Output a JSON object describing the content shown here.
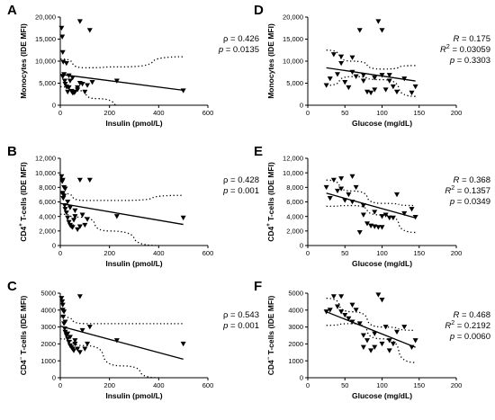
{
  "chart_data": [
    {
      "panel": "A",
      "type": "scatter",
      "xlabel": "Insulin (pmol/L)",
      "ylabel": "Monocytes (IDE MFI)",
      "xlim": [
        0,
        600
      ],
      "ylim": [
        0,
        20000
      ],
      "xticks": [
        0,
        200,
        400,
        600
      ],
      "yticks": [
        0,
        5000,
        10000,
        15000,
        20000
      ],
      "ytick_labels": [
        "0",
        "5,000",
        "10,000",
        "15,000",
        "20,000"
      ],
      "stats": [
        "ρ = 0.426",
        "p = 0.0135"
      ],
      "fit": {
        "x0": 0,
        "x1": 500,
        "y0": 7000,
        "y1": 3400
      },
      "ci_upper": [
        [
          0,
          10500
        ],
        [
          100,
          8500
        ],
        [
          250,
          8700
        ],
        [
          500,
          11000
        ]
      ],
      "ci_lower": [
        [
          0,
          4200
        ],
        [
          60,
          3400
        ],
        [
          150,
          1500
        ],
        [
          300,
          -2000
        ]
      ],
      "x": [
        5,
        8,
        10,
        12,
        15,
        18,
        20,
        25,
        30,
        35,
        40,
        45,
        50,
        55,
        60,
        70,
        80,
        90,
        100,
        110,
        120,
        230,
        500,
        80,
        130,
        35,
        10,
        25,
        50,
        70
      ],
      "y": [
        17500,
        15500,
        6500,
        9800,
        7000,
        5500,
        4800,
        4200,
        3000,
        4000,
        5500,
        3200,
        6200,
        2800,
        3000,
        3500,
        19000,
        4800,
        3000,
        4500,
        17000,
        5500,
        3300,
        5000,
        5200,
        6700,
        12000,
        9500,
        2800,
        4000
      ]
    },
    {
      "panel": "B",
      "type": "scatter",
      "xlabel": "Insulin (pmol/L)",
      "ylabel": "CD4+ T-cells (IDE MFI)",
      "xlim": [
        0,
        600
      ],
      "ylim": [
        0,
        12000
      ],
      "xticks": [
        0,
        200,
        400,
        600
      ],
      "yticks": [
        0,
        2000,
        4000,
        6000,
        8000,
        10000,
        12000
      ],
      "ytick_labels": [
        "0",
        "2,000",
        "4,000",
        "6,000",
        "8,000",
        "10,000",
        "12,000"
      ],
      "stats": [
        "ρ = 0.428",
        "p = 0.001"
      ],
      "fit": {
        "x0": 0,
        "x1": 500,
        "y0": 5800,
        "y1": 2900
      },
      "ci_upper": [
        [
          0,
          7200
        ],
        [
          100,
          6200
        ],
        [
          250,
          6200
        ],
        [
          500,
          6900
        ]
      ],
      "ci_lower": [
        [
          0,
          4300
        ],
        [
          80,
          3900
        ],
        [
          200,
          2000
        ],
        [
          400,
          0
        ]
      ],
      "x": [
        5,
        8,
        10,
        12,
        15,
        18,
        20,
        25,
        30,
        35,
        40,
        45,
        50,
        55,
        60,
        70,
        80,
        90,
        100,
        110,
        120,
        230,
        500,
        10,
        15,
        20,
        30,
        40,
        60,
        80
      ],
      "y": [
        9500,
        8800,
        7200,
        6500,
        6800,
        5500,
        5000,
        4500,
        3800,
        3200,
        2800,
        2600,
        2500,
        3500,
        4000,
        2200,
        9000,
        4200,
        2800,
        3600,
        9000,
        4000,
        3800,
        9000,
        8000,
        7800,
        6000,
        5200,
        4800,
        2600
      ]
    },
    {
      "panel": "C",
      "type": "scatter",
      "xlabel": "Insulin (pmol/L)",
      "ylabel": "CD4- T-cells (IDE MFI)",
      "xlim": [
        0,
        600
      ],
      "ylim": [
        0,
        5000
      ],
      "xticks": [
        0,
        200,
        400,
        600
      ],
      "yticks": [
        0,
        1000,
        2000,
        3000,
        4000,
        5000
      ],
      "ytick_labels": [
        "0",
        "1000",
        "2000",
        "3000",
        "4000",
        "5000"
      ],
      "stats": [
        "ρ = 0.543",
        "p = 0.001"
      ],
      "fit": {
        "x0": 0,
        "x1": 500,
        "y0": 3050,
        "y1": 1100
      },
      "ci_upper": [
        [
          0,
          3600
        ],
        [
          100,
          3200
        ],
        [
          300,
          3200
        ],
        [
          500,
          3200
        ]
      ],
      "ci_lower": [
        [
          0,
          2300
        ],
        [
          100,
          1900
        ],
        [
          250,
          700
        ],
        [
          400,
          0
        ]
      ],
      "x": [
        5,
        8,
        10,
        12,
        15,
        18,
        20,
        25,
        30,
        35,
        40,
        45,
        50,
        55,
        60,
        70,
        80,
        90,
        100,
        110,
        120,
        230,
        500,
        10,
        15,
        20,
        30,
        40,
        60,
        80
      ],
      "y": [
        4700,
        4500,
        4000,
        3600,
        3200,
        2900,
        2700,
        2500,
        2300,
        2100,
        1900,
        1800,
        1700,
        1600,
        2200,
        1700,
        4800,
        2800,
        1700,
        2000,
        3000,
        2200,
        2000,
        4300,
        3900,
        3300,
        2600,
        2400,
        2000,
        1500
      ]
    },
    {
      "panel": "D",
      "type": "scatter",
      "xlabel": "Glucose (mg/dL)",
      "ylabel": "Monocytes (IDE MFI)",
      "xlim": [
        0,
        200
      ],
      "ylim": [
        0,
        20000
      ],
      "xticks": [
        0,
        50,
        100,
        150,
        200
      ],
      "yticks": [
        0,
        5000,
        10000,
        15000,
        20000
      ],
      "ytick_labels": [
        "0",
        "5,000",
        "10,000",
        "15,000",
        "20,000"
      ],
      "stats": [
        "R = 0.175",
        "R2 = 0.03059",
        "p = 0.3303"
      ],
      "fit": {
        "x0": 25,
        "x1": 145,
        "y0": 8500,
        "y1": 5500
      },
      "ci_upper": [
        [
          25,
          12500
        ],
        [
          60,
          10000
        ],
        [
          100,
          8200
        ],
        [
          145,
          9000
        ]
      ],
      "ci_lower": [
        [
          25,
          4500
        ],
        [
          60,
          6500
        ],
        [
          100,
          5800
        ],
        [
          145,
          2000
        ]
      ],
      "x": [
        25,
        30,
        35,
        40,
        45,
        50,
        55,
        60,
        65,
        70,
        75,
        80,
        85,
        90,
        95,
        100,
        105,
        110,
        115,
        120,
        130,
        140,
        145,
        45,
        60,
        75,
        90,
        100,
        110
      ],
      "y": [
        4500,
        6000,
        11500,
        7000,
        9500,
        5200,
        4000,
        10800,
        6500,
        17000,
        5500,
        3000,
        2800,
        6200,
        19000,
        17000,
        3500,
        6800,
        4200,
        3000,
        6000,
        2800,
        4200,
        11000,
        7500,
        6800,
        3500,
        6800,
        5500
      ]
    },
    {
      "panel": "E",
      "type": "scatter",
      "xlabel": "Glucose (mg/dL)",
      "ylabel": "CD4+ T-cells (IDE MFI)",
      "xlim": [
        0,
        200
      ],
      "ylim": [
        0,
        12000
      ],
      "xticks": [
        0,
        50,
        100,
        150,
        200
      ],
      "yticks": [
        0,
        2000,
        4000,
        6000,
        8000,
        10000,
        12000
      ],
      "ytick_labels": [
        "0",
        "2,000",
        "4,000",
        "6,000",
        "8,000",
        "10,000",
        "12,000"
      ],
      "stats": [
        "R = 0.368",
        "R2 = 0.1357",
        "p = 0.0349"
      ],
      "fit": {
        "x0": 25,
        "x1": 145,
        "y0": 7200,
        "y1": 3800
      },
      "ci_upper": [
        [
          25,
          9000
        ],
        [
          60,
          7500
        ],
        [
          100,
          5800
        ],
        [
          145,
          5500
        ]
      ],
      "ci_lower": [
        [
          25,
          5400
        ],
        [
          60,
          5500
        ],
        [
          100,
          4200
        ],
        [
          145,
          1800
        ]
      ],
      "x": [
        25,
        30,
        35,
        40,
        45,
        50,
        55,
        60,
        65,
        70,
        75,
        80,
        85,
        90,
        95,
        100,
        105,
        110,
        115,
        120,
        130,
        140,
        145,
        45,
        60,
        75,
        90,
        100
      ],
      "y": [
        8000,
        6500,
        9000,
        7500,
        9200,
        6200,
        7000,
        9500,
        8000,
        1800,
        4200,
        3000,
        2700,
        2600,
        2500,
        2500,
        4200,
        3800,
        3800,
        7000,
        4400,
        5000,
        3900,
        7800,
        6000,
        5500,
        4600,
        4000
      ]
    },
    {
      "panel": "F",
      "type": "scatter",
      "xlabel": "Glucose (mg/dL)",
      "ylabel": "CD4- T-cells (IDE MFI)",
      "xlim": [
        0,
        200
      ],
      "ylim": [
        0,
        5000
      ],
      "xticks": [
        0,
        50,
        100,
        150,
        200
      ],
      "yticks": [
        0,
        1000,
        2000,
        3000,
        4000,
        5000
      ],
      "ytick_labels": [
        "0",
        "1000",
        "2000",
        "3000",
        "4000",
        "5000"
      ],
      "stats": [
        "R = 0.468",
        "R2 = 0.2192",
        "p = 0.0060"
      ],
      "fit": {
        "x0": 25,
        "x1": 145,
        "y0": 3900,
        "y1": 1800
      },
      "ci_upper": [
        [
          25,
          4700
        ],
        [
          60,
          3900
        ],
        [
          100,
          3000
        ],
        [
          145,
          2800
        ]
      ],
      "ci_lower": [
        [
          25,
          3100
        ],
        [
          60,
          3200
        ],
        [
          100,
          2300
        ],
        [
          145,
          900
        ]
      ],
      "x": [
        25,
        30,
        35,
        40,
        45,
        50,
        55,
        60,
        65,
        70,
        75,
        80,
        85,
        90,
        95,
        100,
        105,
        110,
        115,
        120,
        130,
        140,
        145,
        45,
        60,
        75,
        90,
        100,
        110
      ],
      "y": [
        3900,
        4000,
        4800,
        4200,
        4800,
        3700,
        3500,
        4300,
        4000,
        3200,
        2500,
        2200,
        1600,
        1800,
        4900,
        4600,
        3000,
        2200,
        2000,
        2700,
        3000,
        1800,
        2200,
        3900,
        3300,
        1800,
        2600,
        2000,
        1600
      ]
    }
  ]
}
